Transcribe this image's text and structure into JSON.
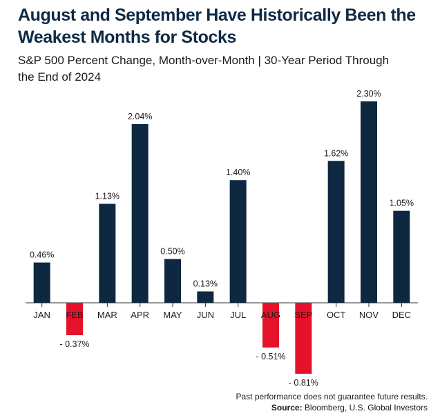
{
  "title": "August and September Have Historically Been the Weakest Months for Stocks",
  "subtitle": "S&P 500 Percent Change, Month-over-Month | 30-Year Period Through the End of 2024",
  "footer": {
    "disclaimer": "Past performance does not guarantee future results.",
    "source_label": "Source:",
    "source_text": " Bloomberg, U.S. Global Investors"
  },
  "colors": {
    "positive": "#0d2840",
    "negative": "#e4122b",
    "axis": "#333333",
    "title": "#0f2a44"
  },
  "chart_data": {
    "type": "bar",
    "title": "August and September Have Historically Been the Weakest Months for Stocks",
    "subtitle": "S&P 500 Percent Change, Month-over-Month | 30-Year Period Through the End of 2024",
    "categories": [
      "JAN",
      "FEB",
      "MAR",
      "APR",
      "MAY",
      "JUN",
      "JUL",
      "AUG",
      "SEP",
      "OCT",
      "NOV",
      "DEC"
    ],
    "values": [
      0.46,
      -0.37,
      1.13,
      2.04,
      0.5,
      0.13,
      1.4,
      -0.51,
      -0.81,
      1.62,
      2.3,
      1.05
    ],
    "data_labels": [
      "0.46%",
      "- 0.37%",
      "1.13%",
      "2.04%",
      "0.50%",
      "0.13%",
      "1.40%",
      "- 0.51%",
      "- 0.81%",
      "1.62%",
      "2.30%",
      "1.05%"
    ],
    "unit": "%",
    "ylim": [
      -0.81,
      2.3
    ],
    "grid": false,
    "legend": "none"
  }
}
